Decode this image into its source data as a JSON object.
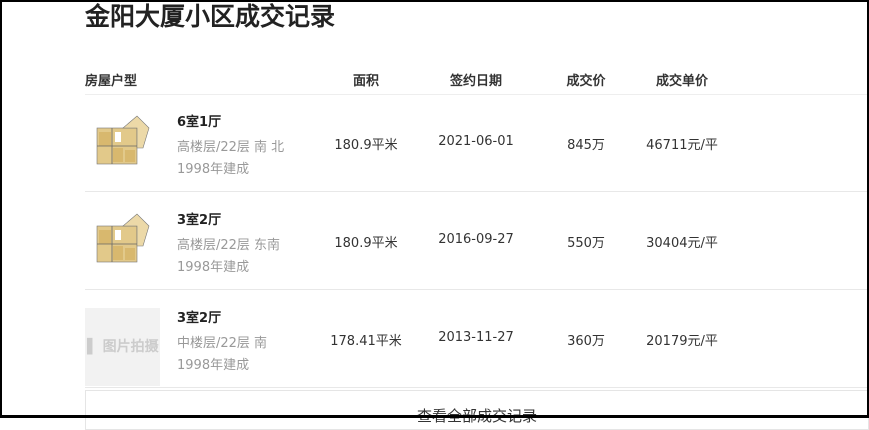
{
  "title": "金阳大厦小区成交记录",
  "headers": {
    "layout": "房屋户型",
    "area": "面积",
    "date": "签约日期",
    "price": "成交价",
    "unit_price": "成交单价"
  },
  "rows": [
    {
      "layout": "6室1厅",
      "floor": "高楼层/22层 南 北",
      "built": "1998年建成",
      "area": "180.9平米",
      "date": "2021-06-01",
      "price": "845万",
      "unit_price": "46711元/平",
      "image": "floorplan"
    },
    {
      "layout": "3室2厅",
      "floor": "高楼层/22层 东南",
      "built": "1998年建成",
      "area": "180.9平米",
      "date": "2016-09-27",
      "price": "550万",
      "unit_price": "30404元/平",
      "image": "floorplan"
    },
    {
      "layout": "3室2厅",
      "floor": "中楼层/22层 南",
      "built": "1998年建成",
      "area": "178.41平米",
      "date": "2013-11-27",
      "price": "360万",
      "unit_price": "20179元/平",
      "image_placeholder": "▌ 图片拍摄"
    }
  ],
  "more_button": "查看全部成交记录"
}
